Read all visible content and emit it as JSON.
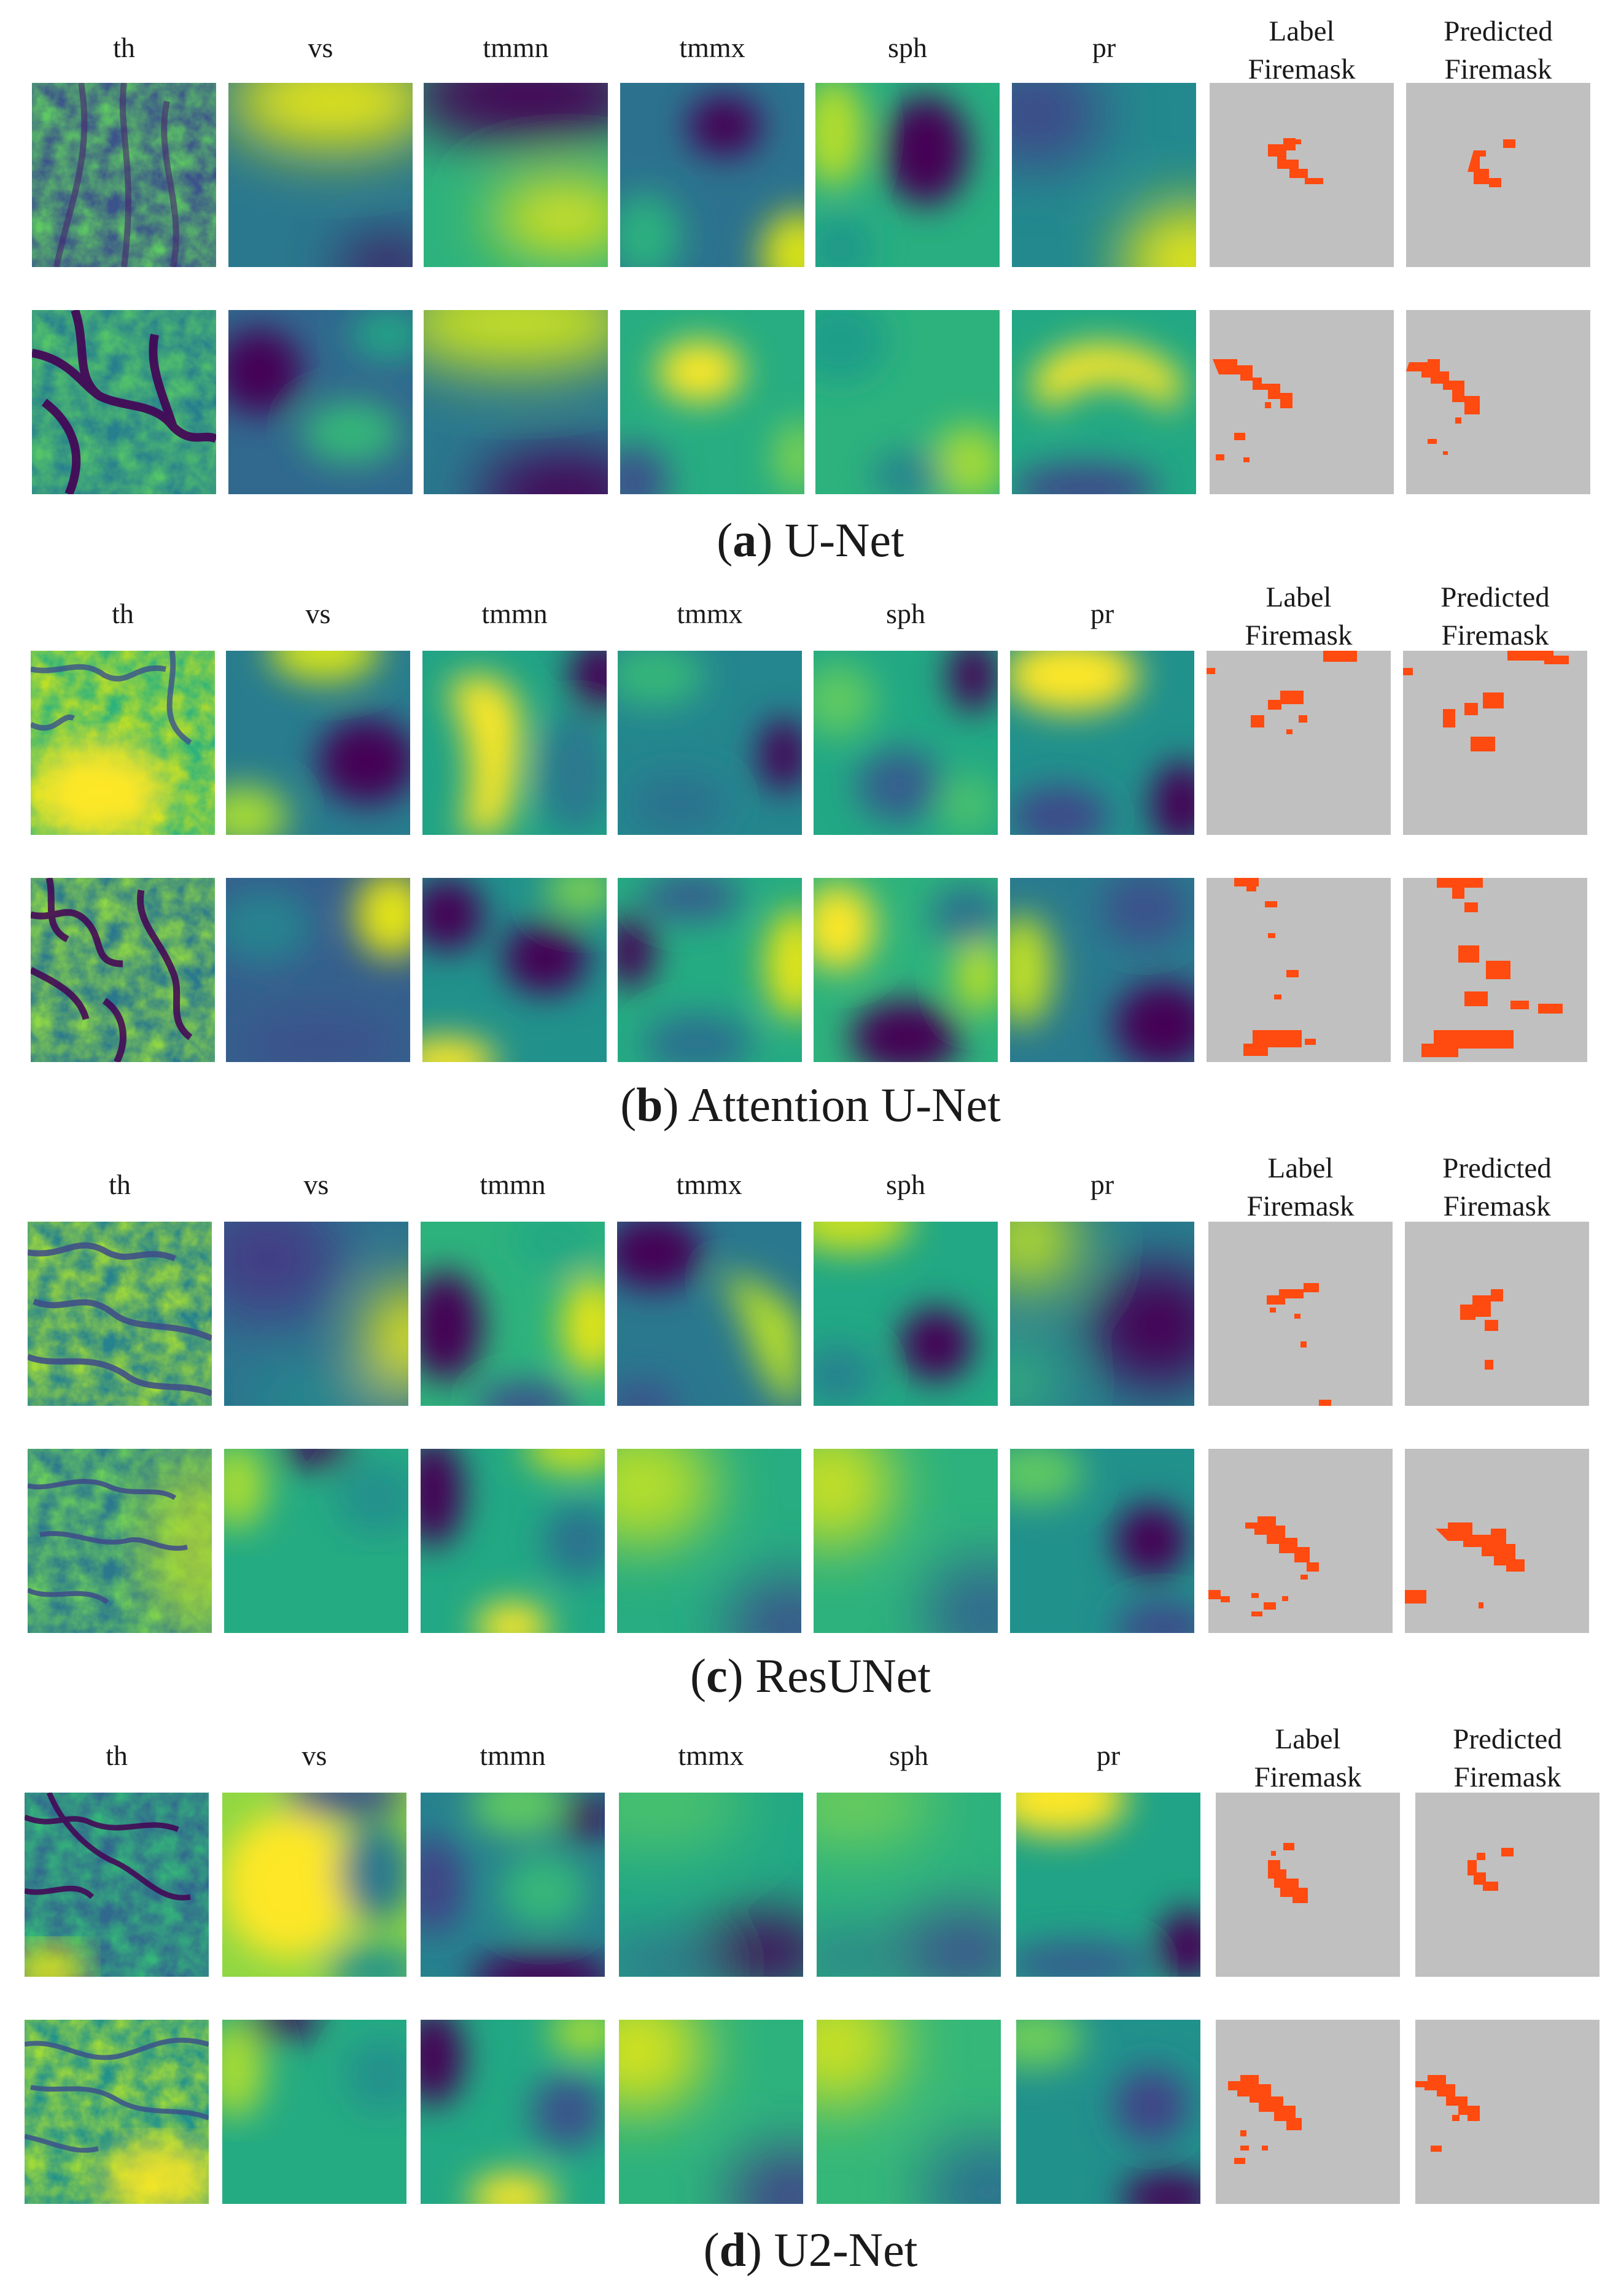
{
  "figure": {
    "columns": [
      "th",
      "vs",
      "tmmn",
      "tmmx",
      "sph",
      "pr"
    ],
    "mask_columns": [
      {
        "line1": "Label",
        "line2": "Firemask"
      },
      {
        "line1": "Predicted",
        "line2": "Firemask"
      }
    ],
    "colors": {
      "fire": "#ff4a10",
      "mask_background": "#c0c0c0",
      "viridis_low": "#440154",
      "viridis_mid": "#21908c",
      "viridis_high": "#fde725"
    },
    "panels": [
      {
        "letter": "a",
        "title": "U-Net"
      },
      {
        "letter": "b",
        "title": "Attention U-Net"
      },
      {
        "letter": "c",
        "title": "ResUNet"
      },
      {
        "letter": "d",
        "title": "U2-Net"
      }
    ]
  }
}
